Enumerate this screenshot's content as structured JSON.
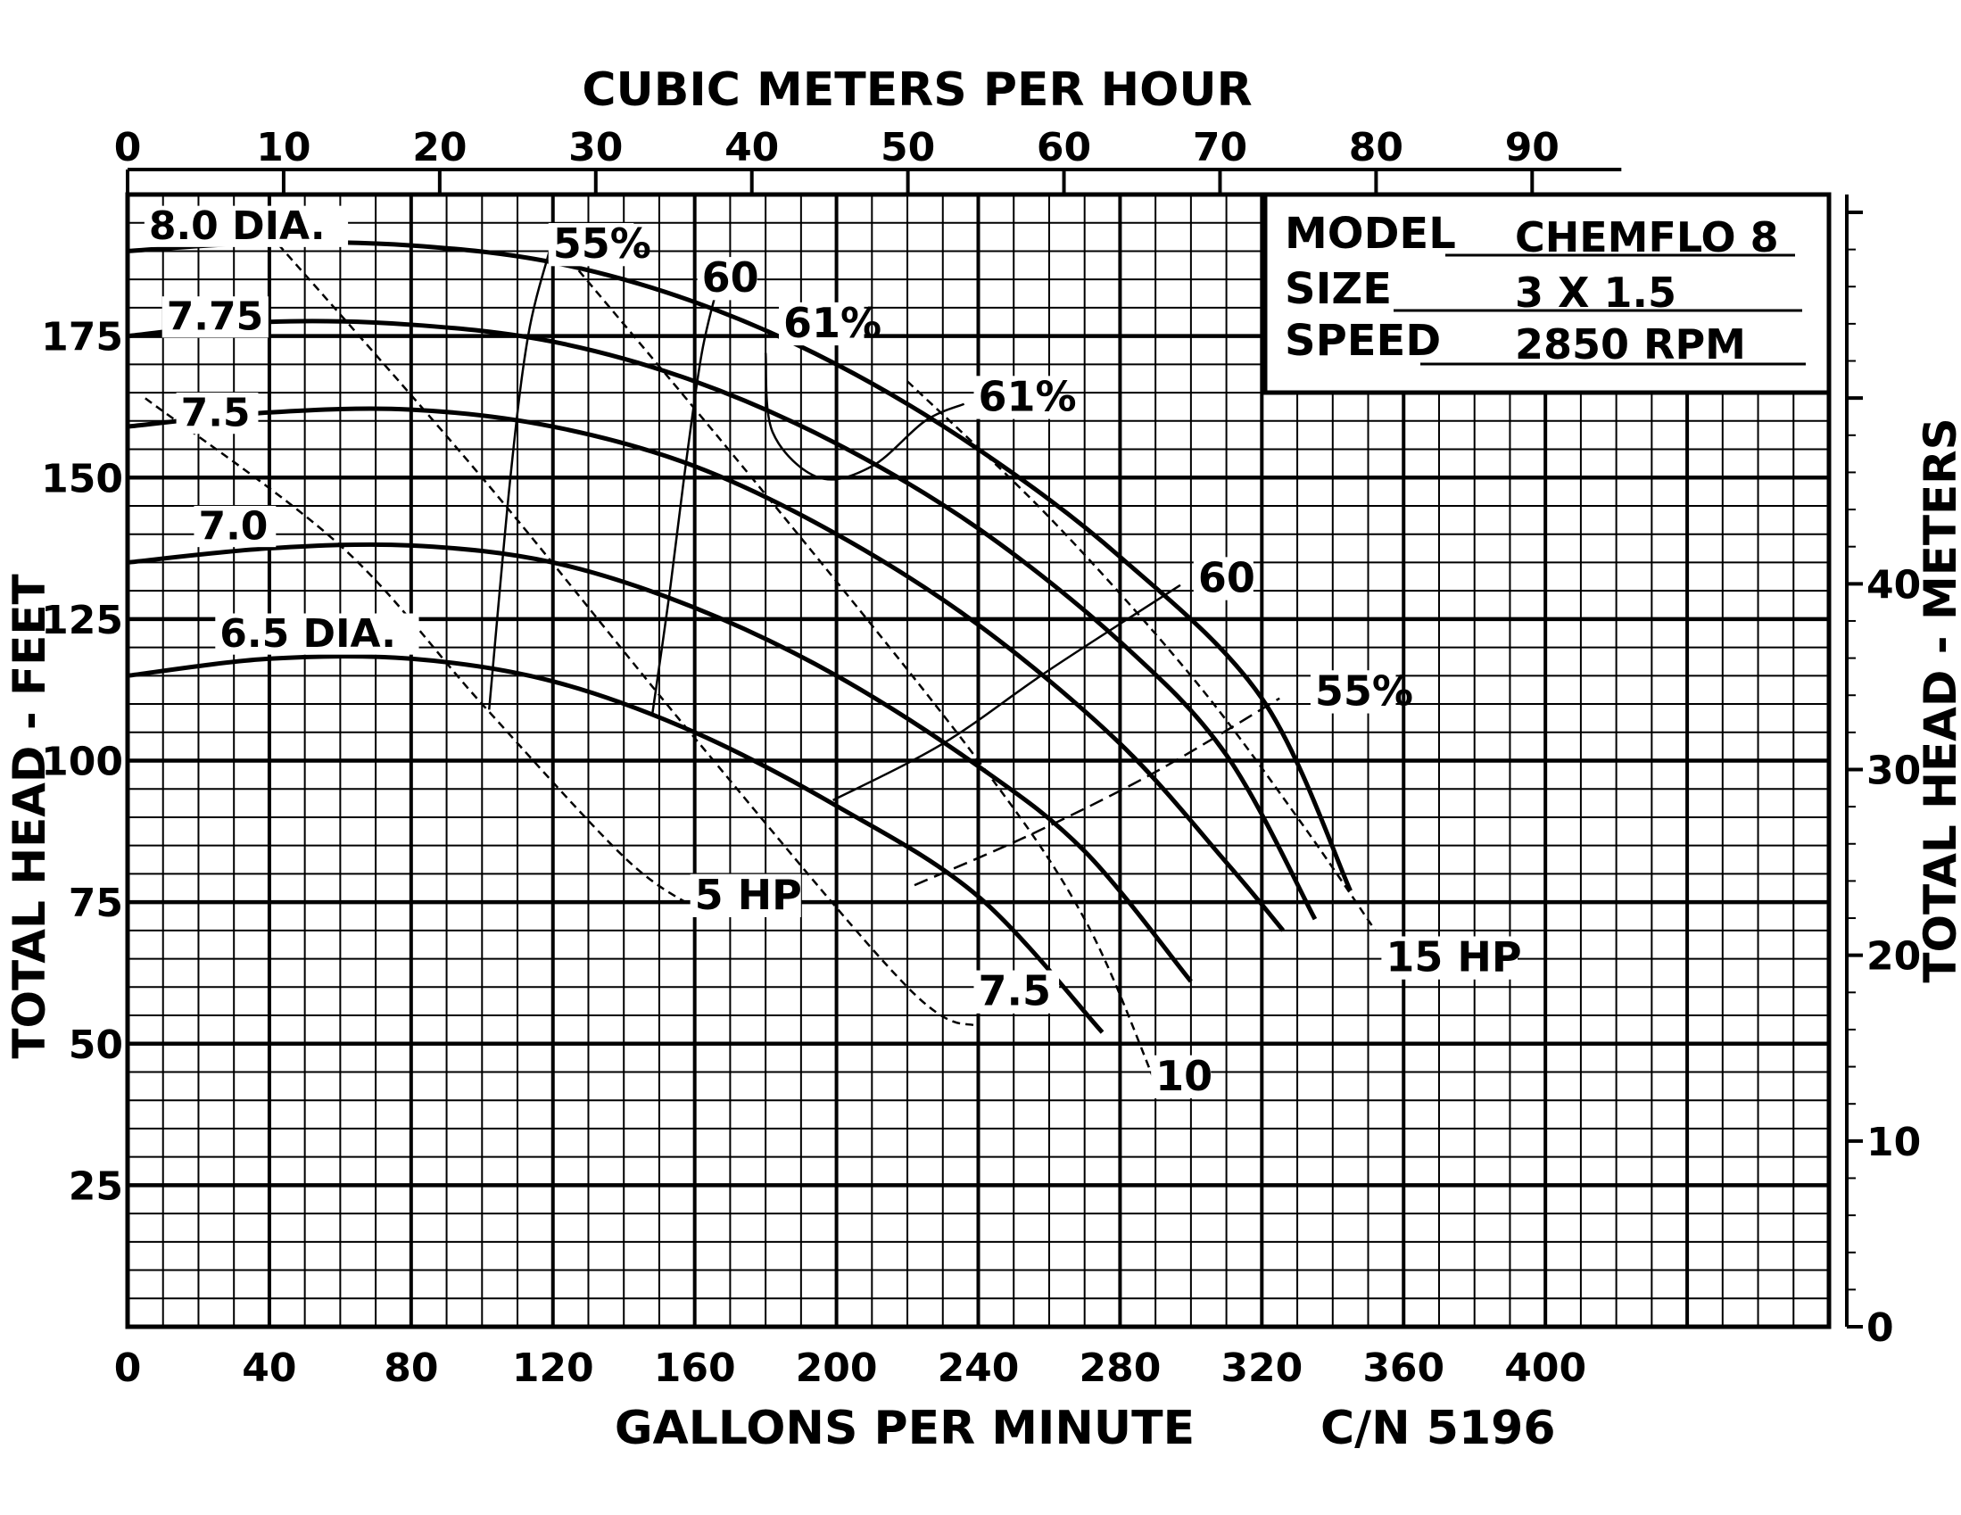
{
  "chart_data": {
    "type": "line",
    "title": "CUBIC METERS PER HOUR",
    "xlabel": "GALLONS PER MINUTE",
    "ylabel": "TOTAL HEAD - FEET",
    "y2label": "TOTAL HEAD - METERS",
    "catalog": "C/N 5196",
    "x_ticks": [
      "0",
      "40",
      "80",
      "120",
      "160",
      "200",
      "240",
      "280",
      "320",
      "360",
      "400"
    ],
    "x2_ticks": [
      "0",
      "10",
      "20",
      "30",
      "40",
      "50",
      "60",
      "70",
      "80",
      "90"
    ],
    "y_ticks": [
      "25",
      "50",
      "75",
      "100",
      "125",
      "150",
      "175"
    ],
    "y2_ticks": [
      "0",
      "10",
      "20",
      "30",
      "40"
    ],
    "xlim": [
      0,
      480
    ],
    "ylim": [
      0,
      200
    ],
    "grid": true,
    "info_box": {
      "model_label": "MODEL",
      "model_value": "CHEMFLO 8",
      "size_label": "SIZE",
      "size_value": "3 X 1.5",
      "speed_label": "SPEED",
      "speed_value": "2850 RPM"
    },
    "series": [
      {
        "name": "8.0 DIA.",
        "label": "8.0 DIA.",
        "points": [
          [
            0,
            190
          ],
          [
            40,
            191.5
          ],
          [
            80,
            191
          ],
          [
            120,
            188
          ],
          [
            160,
            181
          ],
          [
            200,
            170
          ],
          [
            240,
            155
          ],
          [
            280,
            136
          ],
          [
            320,
            111
          ],
          [
            345,
            77
          ]
        ]
      },
      {
        "name": "7.75",
        "label": "7.75",
        "points": [
          [
            0,
            175
          ],
          [
            40,
            177.5
          ],
          [
            80,
            177
          ],
          [
            120,
            174
          ],
          [
            160,
            167
          ],
          [
            200,
            156
          ],
          [
            240,
            141
          ],
          [
            280,
            121
          ],
          [
            310,
            101
          ],
          [
            335,
            72
          ]
        ]
      },
      {
        "name": "7.5",
        "label": "7.5",
        "points": [
          [
            0,
            159
          ],
          [
            40,
            161.5
          ],
          [
            80,
            162
          ],
          [
            120,
            159
          ],
          [
            160,
            152
          ],
          [
            200,
            140
          ],
          [
            240,
            124
          ],
          [
            280,
            103
          ],
          [
            310,
            82
          ],
          [
            326,
            70
          ]
        ]
      },
      {
        "name": "7.0",
        "label": "7.0",
        "points": [
          [
            0,
            135
          ],
          [
            40,
            137.5
          ],
          [
            80,
            138
          ],
          [
            120,
            135
          ],
          [
            160,
            127
          ],
          [
            200,
            115
          ],
          [
            240,
            99
          ],
          [
            270,
            84
          ],
          [
            300,
            61
          ]
        ]
      },
      {
        "name": "6.5 DIA.",
        "label": "6.5 DIA.",
        "points": [
          [
            0,
            115
          ],
          [
            40,
            118
          ],
          [
            80,
            118
          ],
          [
            120,
            114
          ],
          [
            160,
            105
          ],
          [
            200,
            92
          ],
          [
            240,
            76
          ],
          [
            275,
            52
          ]
        ]
      }
    ],
    "efficiency_lines": [
      {
        "label": "55%",
        "points": [
          [
            102,
            109
          ],
          [
            108,
            150
          ],
          [
            113,
            175
          ],
          [
            119,
            190
          ]
        ]
      },
      {
        "label": "60",
        "points": [
          [
            148,
            108
          ],
          [
            153,
            130
          ],
          [
            157,
            150
          ],
          [
            162,
            172
          ],
          [
            167,
            185
          ]
        ]
      },
      {
        "label": "61%",
        "points": [
          [
            180,
            172
          ],
          [
            182,
            158
          ],
          [
            195,
            150
          ],
          [
            210,
            152
          ],
          [
            225,
            160
          ],
          [
            236,
            163
          ]
        ]
      },
      {
        "label": "60",
        "points": [
          [
            199,
            93
          ],
          [
            230,
            103
          ],
          [
            260,
            116
          ],
          [
            297,
            131
          ]
        ]
      },
      {
        "label": "55%",
        "points": [
          [
            222,
            78
          ],
          [
            255,
            87
          ],
          [
            290,
            98
          ],
          [
            325,
            111
          ]
        ]
      }
    ],
    "horsepower_lines": [
      {
        "label": "5 HP",
        "points": [
          [
            5,
            164
          ],
          [
            60,
            138
          ],
          [
            100,
            110
          ],
          [
            140,
            83
          ],
          [
            160,
            74
          ]
        ]
      },
      {
        "label": "7.5",
        "points": [
          [
            40,
            193
          ],
          [
            100,
            150
          ],
          [
            160,
            104
          ],
          [
            220,
            60
          ],
          [
            240,
            53
          ]
        ]
      },
      {
        "label": "10",
        "points": [
          [
            120,
            192
          ],
          [
            180,
            147
          ],
          [
            240,
            100
          ],
          [
            270,
            72
          ],
          [
            290,
            43
          ]
        ]
      },
      {
        "label": "15 HP",
        "points": [
          [
            220,
            167
          ],
          [
            260,
            143
          ],
          [
            300,
            115
          ],
          [
            330,
            90
          ],
          [
            352,
            70
          ]
        ]
      }
    ],
    "annotations": [
      {
        "text": "55%",
        "x": 120,
        "y": 191
      },
      {
        "text": "60",
        "x": 162,
        "y": 185
      },
      {
        "text": "61%",
        "x": 185,
        "y": 177
      },
      {
        "text": "61%",
        "x": 240,
        "y": 164
      },
      {
        "text": "60",
        "x": 302,
        "y": 132
      },
      {
        "text": "55%",
        "x": 335,
        "y": 112
      },
      {
        "text": "5 HP",
        "x": 160,
        "y": 76
      },
      {
        "text": "7.5",
        "x": 240,
        "y": 59
      },
      {
        "text": "10",
        "x": 290,
        "y": 44
      },
      {
        "text": "15 HP",
        "x": 355,
        "y": 65
      }
    ]
  }
}
